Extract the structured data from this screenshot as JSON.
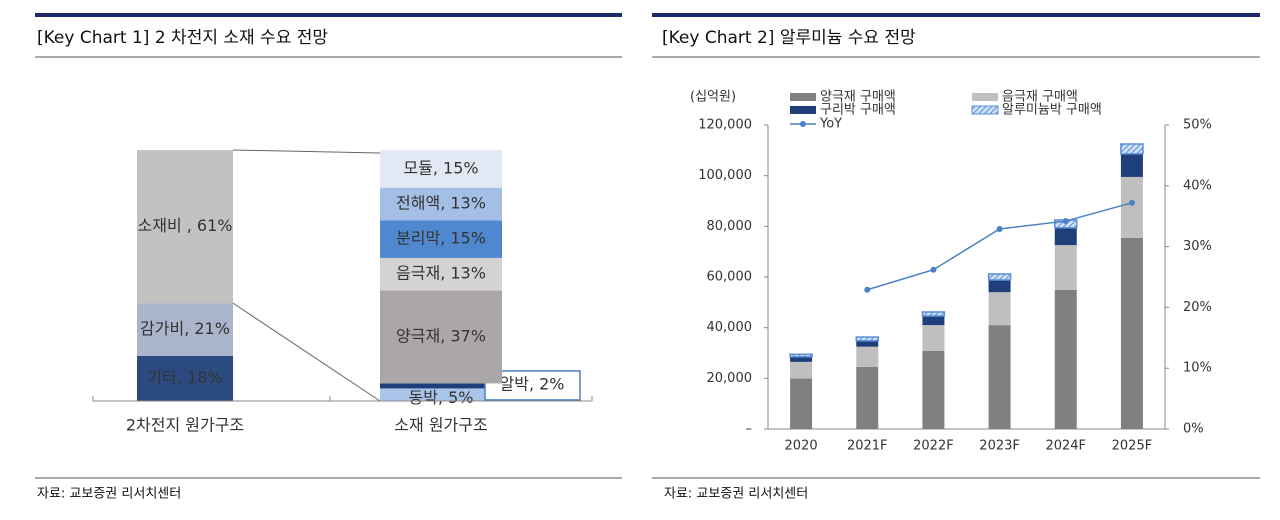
{
  "chart_data": [
    {
      "type": "stacked-share",
      "title": "[Key Chart 1] 2 차전지 소재 수요 전망",
      "source": "자료: 교보증권 리서치센터",
      "categories": [
        "2차전지 원가구조",
        "소재 원가구조"
      ],
      "columns": [
        {
          "segments": [
            {
              "label": "기타, 18%",
              "value": 18,
              "color": "#2b4b80"
            },
            {
              "label": "감가비, 21%",
              "value": 21,
              "color": "#aab4cb"
            },
            {
              "label": "소재비 , 61%",
              "value": 61,
              "color": "#c2c2c2"
            }
          ]
        },
        {
          "segments": [
            {
              "label": "동박, 5%",
              "value": 5,
              "color": "#a9c6ea"
            },
            {
              "label": "알박, 2%",
              "value": 2,
              "color": "#1f3f7a"
            },
            {
              "label": "양극재, 37%",
              "value": 37,
              "color": "#aba7a7"
            },
            {
              "label": "음극재, 13%",
              "value": 13,
              "color": "#d3d3d3"
            },
            {
              "label": "분리막, 15%",
              "value": 15,
              "color": "#4f88cf"
            },
            {
              "label": "전해액, 13%",
              "value": 13,
              "color": "#a3bfe6"
            },
            {
              "label": "모듈, 15%",
              "value": 15,
              "color": "#e2e9f4"
            }
          ]
        }
      ],
      "ylim": [
        0,
        100
      ]
    },
    {
      "type": "bar",
      "title": "[Key Chart 2] 알루미늄 수요 전망",
      "source": "자료: 교보증권 리서치센터",
      "y_label": "(십억원)",
      "categories": [
        "2020",
        "2021F",
        "2022F",
        "2023F",
        "2024F",
        "2025F"
      ],
      "series": [
        {
          "name": "양극재 구매액",
          "color": "#808080",
          "values": [
            20000,
            24500,
            30800,
            41000,
            54900,
            75400
          ]
        },
        {
          "name": "음극재 구매액",
          "color": "#bfbfbf",
          "values": [
            6500,
            8000,
            10200,
            13000,
            17700,
            24100
          ]
        },
        {
          "name": "구리박 구매액",
          "color": "#1f3f7a",
          "values": [
            2000,
            2300,
            3600,
            4800,
            6800,
            9100
          ]
        },
        {
          "name": "알루미늄박 구매액",
          "color": "#5b8fd6",
          "hatch": true,
          "values": [
            1000,
            1500,
            1600,
            2400,
            3100,
            3900
          ]
        },
        {
          "name": "YoY",
          "type": "line",
          "axis": "y2",
          "color": "#4a80c6",
          "values": [
            null,
            22.9,
            26.2,
            32.9,
            34.2,
            37.2
          ]
        }
      ],
      "stacked": true,
      "ylim": [
        0,
        120000
      ],
      "yticks": [
        {
          "value": 0,
          "label": "–"
        },
        {
          "value": 20000,
          "label": "20,000"
        },
        {
          "value": 40000,
          "label": "40,000"
        },
        {
          "value": 60000,
          "label": "60,000"
        },
        {
          "value": 80000,
          "label": "80,000"
        },
        {
          "value": 100000,
          "label": "100,000"
        },
        {
          "value": 120000,
          "label": "120,000"
        }
      ],
      "y2lim": [
        0,
        50
      ],
      "y2ticks": [
        {
          "value": 0,
          "label": "0%"
        },
        {
          "value": 10,
          "label": "10%"
        },
        {
          "value": 20,
          "label": "20%"
        },
        {
          "value": 30,
          "label": "30%"
        },
        {
          "value": 40,
          "label": "40%"
        },
        {
          "value": 50,
          "label": "50%"
        }
      ]
    }
  ]
}
